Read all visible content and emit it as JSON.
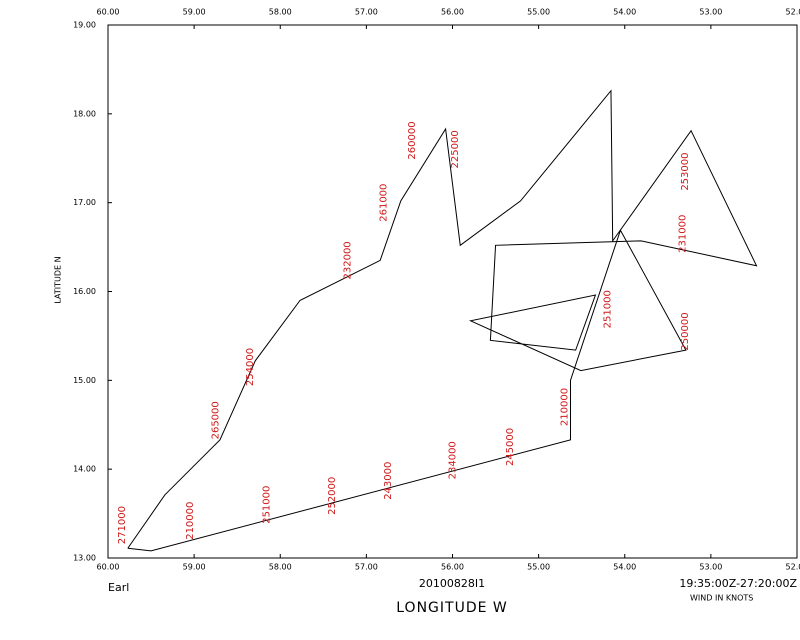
{
  "chart_data": {
    "type": "line",
    "title": "Earl",
    "subtitle": "20100828I1",
    "time_range": "19:35:00Z-27:20:00Z",
    "note": "WIND IN KNOTS",
    "x_label": "LONGITUDE   W",
    "y_label": "LATITUDE   N",
    "color": "#000000",
    "label_color": "#d01818",
    "xlim": [
      60,
      52
    ],
    "ylim": [
      13,
      19
    ],
    "xticks": [
      {
        "value": 60,
        "label": "60.00"
      },
      {
        "value": 59,
        "label": "59.00"
      },
      {
        "value": 58,
        "label": "58.00"
      },
      {
        "value": 57,
        "label": "57.00"
      },
      {
        "value": 56,
        "label": "56.00"
      },
      {
        "value": 55,
        "label": "55.00"
      },
      {
        "value": 54,
        "label": "54.00"
      },
      {
        "value": 53,
        "label": "53.00"
      },
      {
        "value": 52,
        "label": "52.00"
      }
    ],
    "yticks": [
      {
        "value": 13,
        "label": "13.00"
      },
      {
        "value": 14,
        "label": "14.00"
      },
      {
        "value": 15,
        "label": "15.00"
      },
      {
        "value": 16,
        "label": "16.00"
      },
      {
        "value": 17,
        "label": "17.00"
      },
      {
        "value": 18,
        "label": "18.00"
      },
      {
        "value": 19,
        "label": "19.00"
      }
    ],
    "series": [
      {
        "name": null,
        "x": [
          59.77,
          59.34,
          58.7,
          58.29,
          57.77,
          56.84,
          56.6,
          56.08,
          55.91,
          55.21,
          54.16,
          54.14,
          53.23,
          52.47,
          53.81,
          55.5,
          55.56,
          54.57,
          54.34,
          55.79,
          54.51,
          53.29,
          54.05,
          54.63,
          54.63,
          59.5,
          59.77
        ],
        "values": [
          13.11,
          13.71,
          14.33,
          15.22,
          15.9,
          16.35,
          17.02,
          17.83,
          16.52,
          17.02,
          18.26,
          16.57,
          17.81,
          16.29,
          16.57,
          16.52,
          15.45,
          15.34,
          15.96,
          15.67,
          15.11,
          15.34,
          16.69,
          15.0,
          14.33,
          13.08,
          13.11
        ]
      }
    ],
    "annotations": [
      {
        "text": "271000",
        "x": 59.84,
        "y": 13.37
      },
      {
        "text": "265000",
        "x": 58.75,
        "y": 14.55
      },
      {
        "text": "254000",
        "x": 58.35,
        "y": 15.15
      },
      {
        "text": "232000",
        "x": 57.22,
        "y": 16.35
      },
      {
        "text": "261000",
        "x": 56.8,
        "y": 17.0
      },
      {
        "text": "260000",
        "x": 56.47,
        "y": 17.7
      },
      {
        "text": "210000",
        "x": 59.05,
        "y": 13.42
      },
      {
        "text": "251000",
        "x": 58.16,
        "y": 13.6
      },
      {
        "text": "252000",
        "x": 57.4,
        "y": 13.7
      },
      {
        "text": "243000",
        "x": 56.75,
        "y": 13.87
      },
      {
        "text": "234000",
        "x": 56.0,
        "y": 14.1
      },
      {
        "text": "245000",
        "x": 55.33,
        "y": 14.25
      },
      {
        "text": "210000",
        "x": 54.7,
        "y": 14.7
      },
      {
        "text": "250000",
        "x": 53.3,
        "y": 15.55
      },
      {
        "text": "231000",
        "x": 53.33,
        "y": 16.65
      },
      {
        "text": "253000",
        "x": 53.3,
        "y": 17.35
      },
      {
        "text": "251000",
        "x": 54.2,
        "y": 15.8
      },
      {
        "text": "225000",
        "x": 55.97,
        "y": 17.6
      }
    ]
  }
}
